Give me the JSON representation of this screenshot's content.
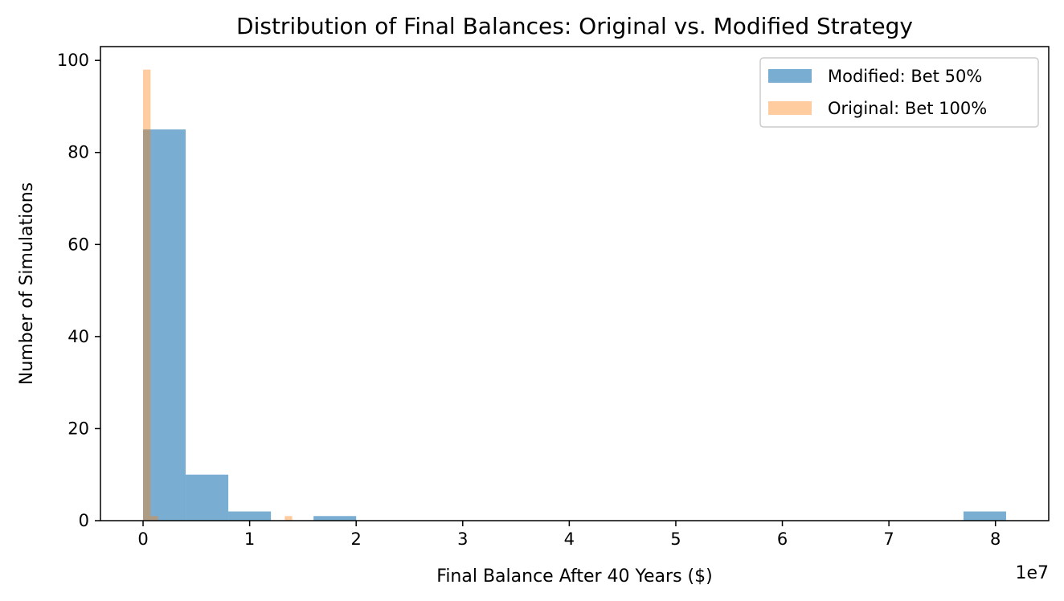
{
  "chart_data": {
    "type": "bar",
    "title": "Distribution of Final Balances: Original vs. Modified Strategy",
    "xlabel": "Final Balance After 40 Years ($)",
    "ylabel": "Number of Simulations",
    "x_offset_label": "1e7",
    "xlim": [
      -0.4,
      8.5
    ],
    "ylim": [
      0,
      103
    ],
    "x_ticks": [
      0,
      1,
      2,
      3,
      4,
      5,
      6,
      7,
      8
    ],
    "y_ticks": [
      0,
      20,
      40,
      60,
      80,
      100
    ],
    "grid": false,
    "legend_position": "top-right",
    "series": [
      {
        "name": "Modified: Bet 50%",
        "color": "#1f77b4",
        "opacity": 0.6,
        "bins": [
          {
            "x0": 0.0,
            "x1": 0.4,
            "count": 85
          },
          {
            "x0": 0.4,
            "x1": 0.8,
            "count": 10
          },
          {
            "x0": 0.8,
            "x1": 1.2,
            "count": 2
          },
          {
            "x0": 1.6,
            "x1": 2.0,
            "count": 1
          },
          {
            "x0": 7.7,
            "x1": 8.1,
            "count": 2
          }
        ]
      },
      {
        "name": "Original: Bet 100%",
        "color": "#ff7f0e",
        "opacity": 0.4,
        "bins": [
          {
            "x0": 0.0,
            "x1": 0.07,
            "count": 98
          },
          {
            "x0": 0.07,
            "x1": 0.14,
            "count": 1
          },
          {
            "x0": 1.33,
            "x1": 1.4,
            "count": 1
          }
        ]
      }
    ]
  }
}
